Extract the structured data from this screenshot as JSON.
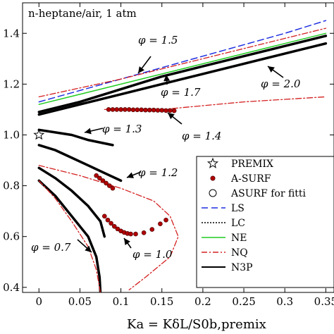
{
  "chart_data": {
    "type": "line",
    "title": "n-heptane/air, 1 atm",
    "xlabel": "Ka = KδL/S0b,premix",
    "ylabel": "",
    "xlim": [
      -0.02,
      0.36
    ],
    "ylim": [
      0.38,
      1.52
    ],
    "xticks": [
      0,
      0.05,
      0.1,
      0.15,
      0.2,
      0.25,
      0.3,
      0.35
    ],
    "xtick_labels": [
      "0",
      "0.05",
      "0.1",
      "0.15",
      "0.2",
      "0.25",
      "0.3",
      "0.35"
    ],
    "yticks": [
      0.4,
      0.6,
      0.8,
      1.0,
      1.2,
      1.4
    ],
    "ytick_labels": [
      "0.4",
      "0.6",
      "0.8",
      "1.0",
      "1.2",
      "1.4"
    ],
    "annotations": [
      {
        "text": "φ = 1.5",
        "x": 0.075,
        "y": 1.35
      },
      {
        "text": "φ = 1.7",
        "x": 0.185,
        "y": 1.13
      },
      {
        "text": "φ = 2.0",
        "x": 0.318,
        "y": 1.16
      },
      {
        "text": "φ = 1.3",
        "x": 0.108,
        "y": 0.98
      },
      {
        "text": "φ = 1.4",
        "x": 0.182,
        "y": 0.98
      },
      {
        "text": "φ = 1.2",
        "x": 0.153,
        "y": 0.82
      },
      {
        "text": "φ = 0.7",
        "x": 0.002,
        "y": 0.57
      },
      {
        "text": "φ = 1.0",
        "x": 0.137,
        "y": 0.5
      }
    ],
    "legend": {
      "position": "lower-right",
      "entries": [
        {
          "label": "PREMIX",
          "marker": "star"
        },
        {
          "label": "A-SURF",
          "marker": "dot",
          "color": "#b00000"
        },
        {
          "label": "ASURF for fitti",
          "marker": "circle"
        },
        {
          "label": "LS",
          "line": "dashed",
          "color": "#1f2fe0"
        },
        {
          "label": "LC",
          "line": "dotted",
          "color": "#000000"
        },
        {
          "label": "NE",
          "line": "solid",
          "color": "#22cc22"
        },
        {
          "label": "NQ",
          "line": "dashdot",
          "color": "#d42020"
        },
        {
          "label": "N3P",
          "line": "solid",
          "color": "#000000"
        }
      ]
    },
    "premix_point": {
      "x": 0.0,
      "y": 1.0
    },
    "asurf_points": {
      "phi_1.4": {
        "x": [
          0.085,
          0.09,
          0.095,
          0.1,
          0.105,
          0.11,
          0.115,
          0.12,
          0.125,
          0.13,
          0.135,
          0.14,
          0.145,
          0.15,
          0.155,
          0.16,
          0.165
        ],
        "y": [
          1.1,
          1.1,
          1.1,
          1.1,
          1.1,
          1.1,
          1.099,
          1.099,
          1.099,
          1.098,
          1.098,
          1.098,
          1.097,
          1.097,
          1.096,
          1.096,
          1.095
        ]
      },
      "phi_1.0": {
        "x": [
          0.08,
          0.084,
          0.088,
          0.092,
          0.096,
          0.1,
          0.104,
          0.108,
          0.112,
          0.118,
          0.128,
          0.138,
          0.148,
          0.155
        ],
        "y": [
          0.68,
          0.665,
          0.652,
          0.64,
          0.63,
          0.622,
          0.616,
          0.612,
          0.61,
          0.61,
          0.615,
          0.628,
          0.65,
          0.665
        ]
      },
      "phi_1.2": {
        "x": [
          0.07,
          0.074,
          0.078,
          0.082,
          0.086,
          0.09
        ],
        "y": [
          0.84,
          0.83,
          0.82,
          0.81,
          0.8,
          0.79
        ]
      }
    },
    "series": [
      {
        "branch": "phi_1.5",
        "style": "N3P",
        "x": [
          0.0,
          0.05,
          0.1,
          0.15,
          0.2,
          0.25,
          0.3,
          0.35
        ],
        "y": [
          1.09,
          1.13,
          1.18,
          1.23,
          1.27,
          1.31,
          1.35,
          1.39
        ]
      },
      {
        "branch": "phi_1.5",
        "style": "LS",
        "x": [
          0.0,
          0.1,
          0.2,
          0.3,
          0.35
        ],
        "y": [
          1.13,
          1.22,
          1.31,
          1.4,
          1.45
        ]
      },
      {
        "branch": "phi_1.5",
        "style": "NE",
        "x": [
          0.0,
          0.1,
          0.2,
          0.3,
          0.35
        ],
        "y": [
          1.12,
          1.2,
          1.28,
          1.36,
          1.4
        ]
      },
      {
        "branch": "phi_1.5",
        "style": "NQ",
        "x": [
          0.0,
          0.1,
          0.2,
          0.3,
          0.35
        ],
        "y": [
          1.15,
          1.22,
          1.3,
          1.38,
          1.42
        ]
      },
      {
        "branch": "phi_2.0",
        "style": "N3P",
        "x": [
          0.0,
          0.1,
          0.2,
          0.3,
          0.35
        ],
        "y": [
          1.08,
          1.16,
          1.24,
          1.32,
          1.36
        ]
      },
      {
        "branch": "phi_1.4",
        "style": "NQ",
        "x": [
          0.08,
          0.15,
          0.25,
          0.35
        ],
        "y": [
          1.1,
          1.1,
          1.13,
          1.15
        ]
      },
      {
        "branch": "phi_1.3",
        "style": "N3P",
        "x": [
          0.0,
          0.02,
          0.04,
          0.06,
          0.09
        ],
        "y": [
          1.02,
          1.01,
          1.0,
          0.98,
          0.96
        ]
      },
      {
        "branch": "phi_1.2",
        "style": "N3P",
        "x": [
          0.0,
          0.02,
          0.04,
          0.06,
          0.08,
          0.1
        ],
        "y": [
          0.96,
          0.94,
          0.91,
          0.88,
          0.85,
          0.82
        ]
      },
      {
        "branch": "phi_1.0",
        "style": "N3P",
        "x": [
          0.0,
          0.02,
          0.04,
          0.06,
          0.075,
          0.08
        ],
        "y": [
          0.87,
          0.83,
          0.78,
          0.72,
          0.66,
          0.6
        ]
      },
      {
        "branch": "phi_1.0",
        "style": "NQ",
        "x": [
          0.0,
          0.05,
          0.1,
          0.14,
          0.16,
          0.17,
          0.16,
          0.13,
          0.11
        ],
        "y": [
          0.88,
          0.84,
          0.79,
          0.74,
          0.68,
          0.6,
          0.52,
          0.44,
          0.39
        ]
      },
      {
        "branch": "phi_0.7",
        "style": "N3P",
        "x": [
          0.0,
          0.02,
          0.04,
          0.06,
          0.07,
          0.074,
          0.075
        ],
        "y": [
          0.82,
          0.76,
          0.68,
          0.6,
          0.52,
          0.44,
          0.38
        ]
      },
      {
        "branch": "phi_0.7",
        "style": "NQ",
        "x": [
          0.0,
          0.02,
          0.04,
          0.06,
          0.07,
          0.075
        ],
        "y": [
          0.82,
          0.75,
          0.66,
          0.56,
          0.47,
          0.38
        ]
      }
    ]
  }
}
